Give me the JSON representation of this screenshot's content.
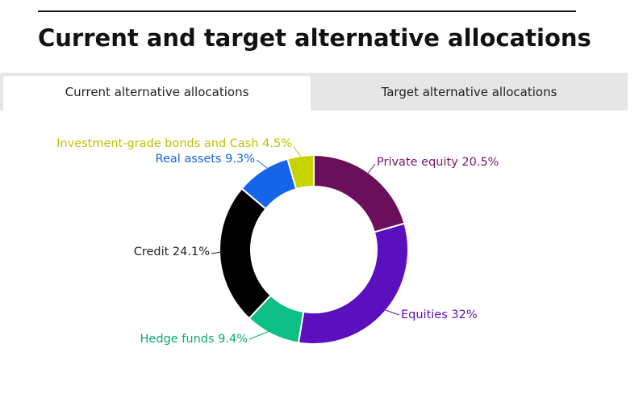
{
  "header": {
    "title": "Current and target alternative allocations"
  },
  "tabs": [
    "Current alternative allocations",
    "Target alternative allocations"
  ],
  "chart_data": {
    "type": "donut",
    "categories": [
      "Private equity",
      "Equities",
      "Hedge funds",
      "Credit",
      "Real assets",
      "Investment-grade bonds and Cash"
    ],
    "values": [
      20.5,
      32,
      9.4,
      24.1,
      9.3,
      4.5
    ],
    "value_labels": [
      "20.5%",
      "32%",
      "9.4%",
      "24.1%",
      "9.3%",
      "4.5%"
    ],
    "colors": [
      "#6b0f5a",
      "#5b0fbf",
      "#0cbf85",
      "#000000",
      "#1565e8",
      "#c8d400"
    ],
    "label_colors": [
      "#7a1468",
      "#5b0fbf",
      "#0ba872",
      "#222222",
      "#1565e8",
      "#b8c400"
    ]
  }
}
